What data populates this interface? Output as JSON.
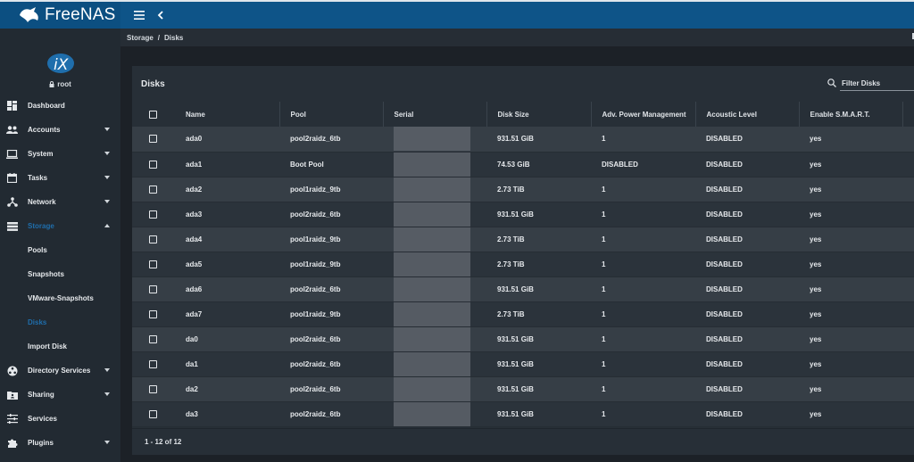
{
  "brand": {
    "name": "FreeNAS"
  },
  "user": {
    "name": "root"
  },
  "breadcrumb": {
    "parent": "Storage",
    "separator": "/",
    "current": "Disks"
  },
  "sidebar": {
    "items": [
      {
        "label": "Dashboard",
        "icon": "dashboard-icon"
      },
      {
        "label": "Accounts",
        "icon": "accounts-icon"
      },
      {
        "label": "System",
        "icon": "system-icon"
      },
      {
        "label": "Tasks",
        "icon": "tasks-icon"
      },
      {
        "label": "Network",
        "icon": "network-icon"
      },
      {
        "label": "Storage",
        "icon": "storage-icon"
      }
    ],
    "storage_sub": [
      "Pools",
      "Snapshots",
      "VMware-Snapshots",
      "Disks",
      "Import Disk"
    ],
    "items_after": [
      {
        "label": "Directory Services",
        "icon": "directory-services-icon"
      },
      {
        "label": "Sharing",
        "icon": "sharing-icon"
      },
      {
        "label": "Services",
        "icon": "services-icon"
      },
      {
        "label": "Plugins",
        "icon": "plugins-icon"
      }
    ]
  },
  "card": {
    "title": "Disks",
    "filter_placeholder": "Filter Disks",
    "footer": "1 - 12 of 12"
  },
  "table": {
    "columns": [
      "Name",
      "Pool",
      "Serial",
      "Disk Size",
      "Adv. Power Management",
      "Acoustic Level",
      "Enable S.M.A.R.T."
    ],
    "rows": [
      {
        "name": "ada0",
        "pool": "pool2raidz_6tb",
        "size": "931.51 GiB",
        "apm": "1",
        "acoustic": "DISABLED",
        "smart": "yes"
      },
      {
        "name": "ada1",
        "pool": "Boot Pool",
        "size": "74.53 GiB",
        "apm": "DISABLED",
        "acoustic": "DISABLED",
        "smart": "yes"
      },
      {
        "name": "ada2",
        "pool": "pool1raidz_9tb",
        "size": "2.73 TiB",
        "apm": "1",
        "acoustic": "DISABLED",
        "smart": "yes"
      },
      {
        "name": "ada3",
        "pool": "pool2raidz_6tb",
        "size": "931.51 GiB",
        "apm": "1",
        "acoustic": "DISABLED",
        "smart": "yes"
      },
      {
        "name": "ada4",
        "pool": "pool1raidz_9tb",
        "size": "2.73 TiB",
        "apm": "1",
        "acoustic": "DISABLED",
        "smart": "yes"
      },
      {
        "name": "ada5",
        "pool": "pool1raidz_9tb",
        "size": "2.73 TiB",
        "apm": "1",
        "acoustic": "DISABLED",
        "smart": "yes"
      },
      {
        "name": "ada6",
        "pool": "pool2raidz_6tb",
        "size": "931.51 GiB",
        "apm": "1",
        "acoustic": "DISABLED",
        "smart": "yes"
      },
      {
        "name": "ada7",
        "pool": "pool1raidz_9tb",
        "size": "2.73 TiB",
        "apm": "1",
        "acoustic": "DISABLED",
        "smart": "yes"
      },
      {
        "name": "da0",
        "pool": "pool2raidz_6tb",
        "size": "931.51 GiB",
        "apm": "1",
        "acoustic": "DISABLED",
        "smart": "yes"
      },
      {
        "name": "da1",
        "pool": "pool2raidz_6tb",
        "size": "931.51 GiB",
        "apm": "1",
        "acoustic": "DISABLED",
        "smart": "yes"
      },
      {
        "name": "da2",
        "pool": "pool2raidz_6tb",
        "size": "931.51 GiB",
        "apm": "1",
        "acoustic": "DISABLED",
        "smart": "yes"
      },
      {
        "name": "da3",
        "pool": "pool2raidz_6tb",
        "size": "931.51 GiB",
        "apm": "1",
        "acoustic": "DISABLED",
        "smart": "yes"
      }
    ]
  },
  "colors": {
    "topbar": "#0e5488",
    "sidebar": "#222a32",
    "accent": "#1f6eac"
  }
}
